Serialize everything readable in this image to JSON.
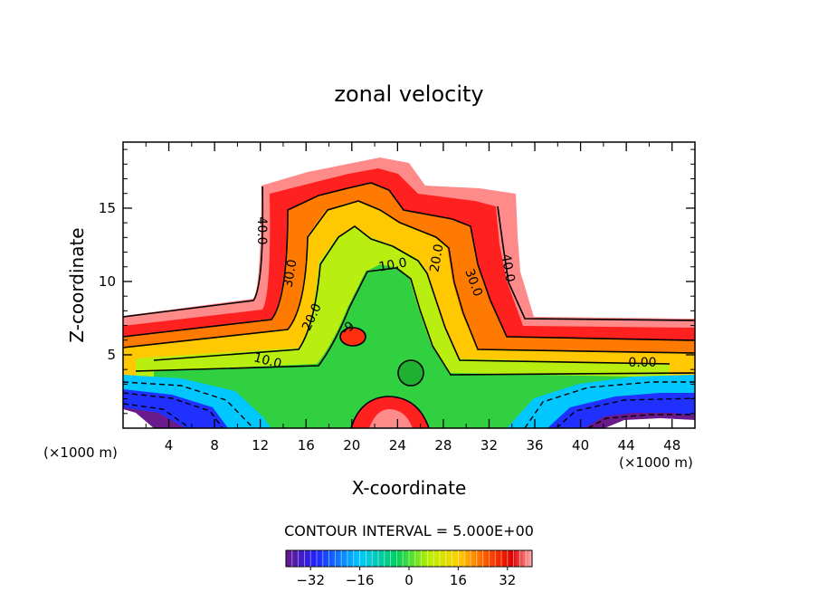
{
  "chart_data": {
    "type": "contour",
    "title": "zonal velocity",
    "xlabel": "X-coordinate",
    "ylabel": "Z-coordinate",
    "x_unit_label": "(×1000 m)",
    "x_unit_label_right": "(×1000 m)",
    "xlim": [
      0,
      50
    ],
    "ylim": [
      0,
      19.5
    ],
    "xticks": [
      4,
      8,
      12,
      16,
      20,
      24,
      28,
      32,
      36,
      40,
      44,
      48
    ],
    "yticks": [
      5,
      10,
      15
    ],
    "contour_labels": [
      "40.0",
      "30.0",
      "20.0",
      "10.0",
      "0.00",
      "20.0",
      "30.0",
      "40.0",
      "10.0",
      "-9"
    ],
    "contour_interval_text": "CONTOUR INTERVAL = 5.000E+00",
    "colorbar": {
      "range": [
        -40,
        40
      ],
      "ticks": [
        -32,
        -16,
        0,
        16,
        32
      ],
      "tick_labels": [
        "−32",
        "−16",
        "0",
        "16",
        "32"
      ]
    },
    "colors": {
      "deep_negative": "#4b0082",
      "negative": "#0000ff",
      "near_zero": "#00c000",
      "positive_mid": "#ffd700",
      "positive_high": "#ff0000",
      "positive_max": "#ff8080"
    }
  }
}
